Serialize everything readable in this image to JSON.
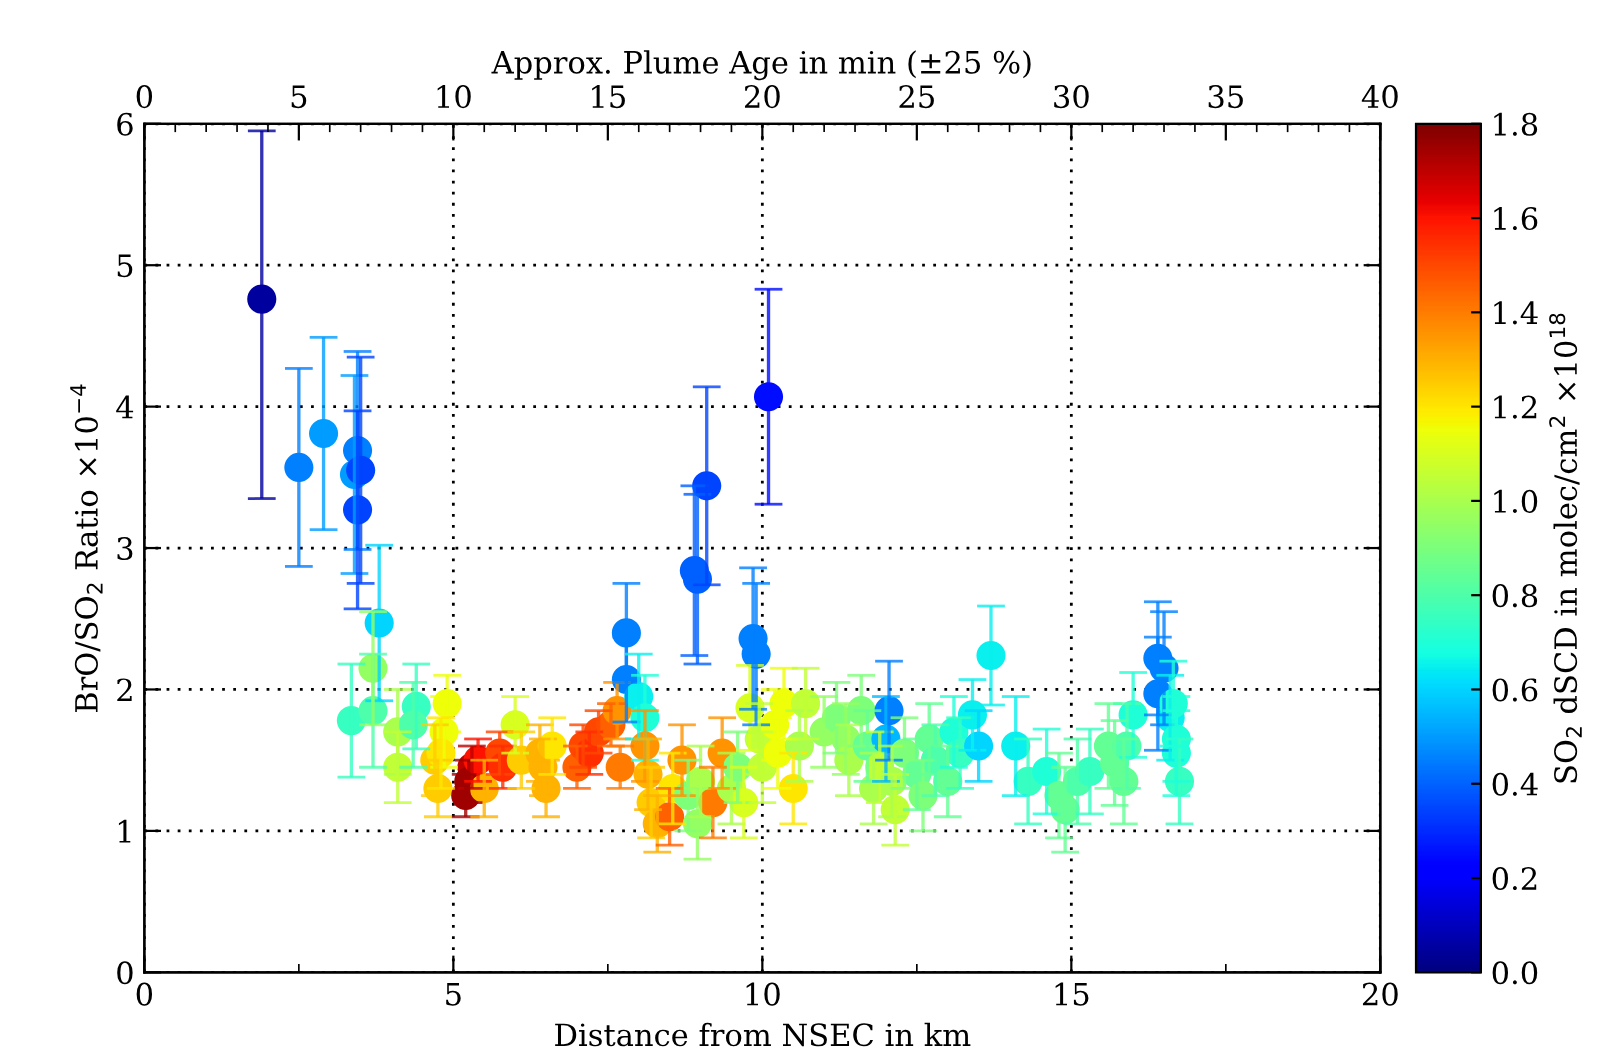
{
  "chart_data": {
    "type": "scatter",
    "xlabel": "Distance from NSEC in km",
    "ylabel": "BrO/SO$_{2}$ Ratio ×10$^{−4}$",
    "x2label": "Approx. Plume Age in min (±25 %)",
    "clabel": "SO$_{2}$ dSCD in molec/cm$^{2}$ ×10$^{18}$",
    "xlim": [
      0,
      20
    ],
    "xticks": [
      0,
      5,
      10,
      15,
      20
    ],
    "x2lim": [
      0,
      40
    ],
    "x2ticks": [
      0,
      5,
      10,
      15,
      20,
      25,
      30,
      35,
      40
    ],
    "ylim": [
      0,
      6
    ],
    "yticks": [
      0,
      1,
      2,
      3,
      4,
      5,
      6
    ],
    "clim": [
      0,
      1.8
    ],
    "cticks": [
      {
        "value": 0,
        "label": "0.0"
      },
      {
        "value": 0.2,
        "label": "0.2"
      },
      {
        "value": 0.4,
        "label": "0.4"
      },
      {
        "value": 0.6,
        "label": "0.6"
      },
      {
        "value": 0.8,
        "label": "0.8"
      },
      {
        "value": 1.0,
        "label": "1.0"
      },
      {
        "value": 1.2,
        "label": "1.2"
      },
      {
        "value": 1.4,
        "label": "1.4"
      },
      {
        "value": 1.6,
        "label": "1.6"
      },
      {
        "value": 1.8,
        "label": "1.8"
      }
    ],
    "grid": true,
    "legend": false,
    "marker": "circle",
    "series": [
      {
        "x": [
          1.9,
          2.5,
          2.9,
          3.4,
          3.45,
          3.5,
          3.45,
          3.8,
          3.35,
          3.7,
          3.7,
          4.1,
          4.1,
          4.4,
          4.35,
          4.9,
          4.85,
          4.7,
          4.75,
          4.8,
          5.3,
          5.25,
          5.2,
          5.4,
          5.5,
          5.75,
          5.8,
          6.0,
          6.1,
          6.4,
          6.45,
          6.5,
          6.6,
          7.0,
          7.1,
          7.2,
          7.35,
          7.55,
          7.7,
          7.65,
          7.8,
          7.8,
          8.0,
          8.1,
          8.1,
          8.15,
          8.2,
          8.3,
          8.5,
          8.55,
          8.7,
          8.8,
          8.95,
          9.0,
          9.2,
          9.35,
          9.5,
          9.6,
          9.7,
          8.9,
          8.95,
          9.1,
          9.8,
          9.85,
          9.9,
          10.1,
          9.95,
          10.0,
          10.2,
          10.25,
          10.35,
          10.5,
          10.6,
          10.7,
          11.0,
          11.2,
          11.35,
          11.4,
          11.6,
          11.7,
          11.8,
          11.9,
          12.0,
          12.05,
          12.1,
          12.15,
          12.3,
          12.5,
          12.6,
          12.7,
          12.8,
          13.0,
          13.1,
          13.2,
          13.4,
          13.5,
          13.7,
          14.1,
          14.3,
          14.6,
          14.8,
          14.9,
          15.1,
          15.3,
          15.6,
          15.7,
          15.9,
          16.0,
          15.85,
          16.4,
          16.5,
          16.4,
          16.6,
          16.7,
          16.75,
          16.7,
          16.65
        ],
        "values": [
          4.76,
          3.57,
          3.81,
          3.52,
          3.69,
          3.55,
          3.27,
          2.47,
          1.78,
          1.85,
          2.15,
          1.7,
          1.45,
          1.88,
          1.75,
          1.9,
          1.7,
          1.5,
          1.3,
          1.55,
          1.45,
          1.35,
          1.25,
          1.5,
          1.3,
          1.55,
          1.45,
          1.75,
          1.5,
          1.55,
          1.45,
          1.3,
          1.6,
          1.45,
          1.6,
          1.55,
          1.7,
          1.75,
          1.45,
          1.85,
          2.4,
          2.07,
          1.95,
          1.8,
          1.6,
          1.4,
          1.2,
          1.05,
          1.1,
          1.3,
          1.5,
          1.25,
          1.05,
          1.35,
          1.2,
          1.55,
          1.3,
          1.45,
          1.2,
          2.84,
          2.78,
          3.44,
          1.87,
          2.36,
          2.25,
          4.07,
          1.65,
          1.45,
          1.75,
          1.55,
          1.9,
          1.3,
          1.6,
          1.9,
          1.7,
          1.8,
          1.65,
          1.5,
          1.85,
          1.6,
          1.3,
          1.45,
          1.65,
          1.85,
          1.35,
          1.15,
          1.55,
          1.4,
          1.25,
          1.65,
          1.5,
          1.35,
          1.7,
          1.55,
          1.82,
          1.6,
          2.24,
          1.6,
          1.35,
          1.42,
          1.25,
          1.15,
          1.35,
          1.42,
          1.6,
          1.48,
          1.6,
          1.82,
          1.35,
          2.22,
          2.15,
          1.97,
          1.8,
          1.55,
          1.35,
          1.65,
          1.9
        ],
        "cvalues": [
          0.05,
          0.45,
          0.5,
          0.5,
          0.45,
          0.35,
          0.35,
          0.6,
          0.75,
          0.8,
          0.95,
          1.0,
          1.05,
          0.75,
          0.8,
          1.15,
          1.15,
          1.25,
          1.25,
          1.2,
          1.7,
          1.75,
          1.75,
          1.6,
          1.3,
          1.5,
          1.55,
          1.1,
          1.25,
          1.3,
          1.3,
          1.3,
          1.2,
          1.45,
          1.5,
          1.55,
          1.5,
          1.45,
          1.4,
          1.35,
          0.45,
          0.45,
          0.65,
          0.7,
          1.35,
          1.3,
          1.25,
          1.3,
          1.45,
          1.2,
          1.35,
          0.9,
          0.95,
          1.0,
          1.4,
          1.35,
          1.0,
          0.9,
          1.1,
          0.4,
          0.4,
          0.35,
          1.1,
          0.45,
          0.45,
          0.25,
          1.05,
          1.05,
          1.15,
          1.15,
          1.15,
          1.2,
          1.0,
          1.05,
          0.95,
          0.9,
          0.95,
          1.0,
          0.9,
          0.85,
          1.0,
          1.05,
          0.55,
          0.45,
          1.0,
          1.05,
          0.9,
          0.85,
          0.9,
          0.85,
          0.8,
          0.85,
          0.7,
          0.75,
          0.65,
          0.6,
          0.65,
          0.65,
          0.75,
          0.7,
          0.85,
          0.85,
          0.8,
          0.75,
          0.85,
          0.85,
          0.8,
          0.7,
          0.85,
          0.45,
          0.45,
          0.45,
          0.65,
          0.7,
          0.75,
          0.7,
          0.7
        ],
        "errors": [
          [
            3.35,
            5.95
          ],
          0.7,
          0.68,
          0.7,
          0.7,
          0.8,
          0.7,
          0.55,
          0.4,
          0.4,
          0.4,
          0.3,
          0.25,
          0.3,
          0.3,
          0.2,
          0.25,
          0.25,
          0.2,
          0.25,
          0.15,
          0.15,
          0.15,
          0.15,
          0.2,
          0.15,
          0.15,
          0.2,
          0.2,
          0.2,
          0.2,
          0.2,
          0.2,
          0.15,
          0.15,
          0.15,
          0.15,
          0.15,
          0.15,
          0.2,
          0.35,
          0.3,
          0.3,
          0.3,
          0.25,
          0.25,
          0.25,
          0.2,
          0.2,
          0.25,
          0.25,
          0.25,
          0.25,
          0.25,
          0.25,
          0.25,
          0.25,
          0.25,
          0.25,
          0.6,
          0.6,
          0.7,
          0.3,
          0.5,
          0.5,
          0.76,
          0.25,
          0.25,
          0.25,
          0.25,
          0.25,
          0.25,
          0.25,
          0.25,
          0.25,
          0.25,
          0.25,
          0.25,
          0.25,
          0.25,
          0.25,
          0.25,
          0.3,
          0.35,
          0.25,
          0.25,
          0.25,
          0.25,
          0.25,
          0.25,
          0.25,
          0.25,
          0.25,
          0.25,
          0.25,
          0.25,
          0.35,
          0.35,
          0.3,
          0.3,
          0.3,
          0.3,
          0.3,
          0.3,
          0.3,
          0.3,
          0.3,
          0.3,
          0.3,
          0.4,
          0.4,
          0.4,
          0.3,
          0.3,
          0.3,
          0.3,
          0.3
        ]
      }
    ]
  }
}
